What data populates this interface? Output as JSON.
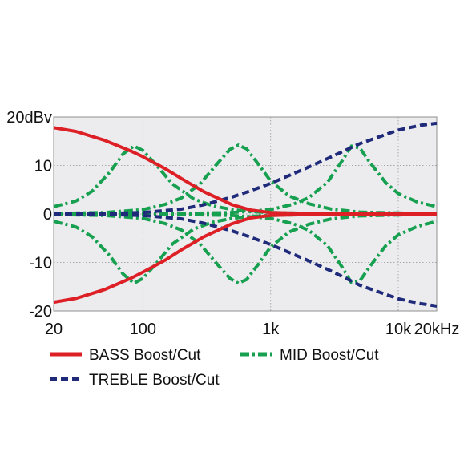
{
  "chart_data": {
    "type": "line",
    "xscale": "log",
    "xlim": [
      20,
      20000
    ],
    "ylim": [
      -20,
      20
    ],
    "grid": true,
    "legend_position": "bottom",
    "x_ticks": [
      {
        "value": 20,
        "label": "20"
      },
      {
        "value": 100,
        "label": "100"
      },
      {
        "value": 1000,
        "label": "1k"
      },
      {
        "value": 10000,
        "label": "10k"
      },
      {
        "value": 20000,
        "label": "20kHz"
      }
    ],
    "y_ticks": [
      {
        "value": 20,
        "label": "20dBv"
      },
      {
        "value": 10,
        "label": "10"
      },
      {
        "value": 0,
        "label": "0"
      },
      {
        "value": -10,
        "label": "-10"
      },
      {
        "value": -20,
        "label": "-20"
      }
    ],
    "legend": [
      {
        "key": "bass",
        "label": "BASS Boost/Cut"
      },
      {
        "key": "mid",
        "label": "MID Boost/Cut"
      },
      {
        "key": "treble",
        "label": "TREBLE Boost/Cut"
      }
    ],
    "series": [
      {
        "key": "bass",
        "name": "BASS Boost/Cut",
        "color": "#dd1f26",
        "style": "solid",
        "x": [
          20,
          30,
          50,
          80,
          100,
          150,
          200,
          300,
          500,
          700,
          1000,
          2000,
          5000,
          20000
        ],
        "y": [
          17.8,
          17,
          15.2,
          13,
          11.8,
          9.3,
          7.3,
          4.6,
          1.9,
          0.8,
          0.3,
          0.1,
          0,
          0
        ]
      },
      {
        "key": "bass",
        "name": "BASS Boost/Cut",
        "color": "#dd1f26",
        "style": "solid",
        "x": [
          20,
          30,
          50,
          80,
          100,
          150,
          200,
          300,
          500,
          700,
          1000,
          2000,
          5000,
          20000
        ],
        "y": [
          -18.2,
          -17.4,
          -15.6,
          -13.3,
          -12,
          -9.5,
          -7.4,
          -4.7,
          -2,
          -0.8,
          -0.3,
          -0.1,
          0,
          0
        ]
      },
      {
        "key": "treble",
        "name": "TREBLE Boost/Cut",
        "color": "#1f2a7a",
        "style": "dashed",
        "x": [
          20,
          50,
          100,
          200,
          300,
          500,
          700,
          1000,
          2000,
          3000,
          5000,
          10000,
          15000,
          20000
        ],
        "y": [
          0,
          0.1,
          0.3,
          1,
          1.9,
          3.5,
          4.8,
          6.3,
          9.7,
          11.8,
          14.5,
          17.3,
          18.3,
          18.7
        ]
      },
      {
        "key": "treble",
        "name": "TREBLE Boost/Cut",
        "color": "#1f2a7a",
        "style": "dashed",
        "x": [
          20,
          50,
          100,
          200,
          300,
          500,
          700,
          1000,
          2000,
          3000,
          5000,
          10000,
          15000,
          20000
        ],
        "y": [
          0,
          -0.1,
          -0.3,
          -1,
          -1.9,
          -3.5,
          -4.8,
          -6.3,
          -9.7,
          -11.8,
          -14.7,
          -17.5,
          -18.5,
          -19
        ]
      },
      {
        "key": "mid",
        "name": "MID Boost/Cut",
        "color": "#17a050",
        "style": "dashdot",
        "x": [
          20,
          30,
          40,
          55,
          70,
          85,
          100,
          130,
          170,
          250,
          350,
          500,
          700,
          1000,
          2000,
          5000,
          20000
        ],
        "y": [
          1.5,
          2.7,
          4.7,
          8.6,
          12.4,
          14,
          13.1,
          9.8,
          6.2,
          3.1,
          1.7,
          0.9,
          0.5,
          0.3,
          0.1,
          0,
          0
        ]
      },
      {
        "key": "mid",
        "name": "MID Boost/Cut",
        "color": "#17a050",
        "style": "dashdot",
        "x": [
          20,
          30,
          40,
          55,
          70,
          85,
          100,
          130,
          170,
          250,
          350,
          500,
          700,
          1000,
          2000,
          5000,
          20000
        ],
        "y": [
          -1.5,
          -2.7,
          -4.7,
          -8.6,
          -12.4,
          -14.3,
          -13.3,
          -9.9,
          -6.2,
          -3.1,
          -1.7,
          -0.9,
          -0.5,
          -0.3,
          -0.1,
          0,
          0
        ]
      },
      {
        "key": "mid",
        "name": "MID Boost/Cut",
        "color": "#17a050",
        "style": "dashdot",
        "x": [
          20,
          50,
          100,
          150,
          200,
          280,
          380,
          480,
          560,
          650,
          800,
          1000,
          1400,
          2000,
          3000,
          5000,
          20000
        ],
        "y": [
          0.1,
          0.3,
          0.9,
          2,
          3.3,
          6.2,
          10.3,
          13.3,
          14.2,
          13.4,
          10.3,
          6.8,
          3.7,
          2.1,
          1,
          0.4,
          0
        ]
      },
      {
        "key": "mid",
        "name": "MID Boost/Cut",
        "color": "#17a050",
        "style": "dashdot",
        "x": [
          20,
          50,
          100,
          150,
          200,
          280,
          380,
          480,
          560,
          650,
          800,
          1000,
          1400,
          2000,
          3000,
          5000,
          20000
        ],
        "y": [
          -0.1,
          -0.3,
          -0.9,
          -2,
          -3.3,
          -6.2,
          -10.3,
          -13.3,
          -14.3,
          -13.5,
          -10.4,
          -6.8,
          -3.7,
          -2.1,
          -1,
          -0.4,
          0
        ]
      },
      {
        "key": "mid",
        "name": "MID Boost/Cut",
        "color": "#17a050",
        "style": "dashdot",
        "x": [
          20,
          200,
          500,
          1000,
          1500,
          2000,
          2800,
          3600,
          4300,
          5000,
          6000,
          8000,
          10000,
          14000,
          20000
        ],
        "y": [
          0,
          0.1,
          0.3,
          0.9,
          2,
          3.4,
          6.6,
          10.8,
          14,
          13.6,
          10.6,
          6.4,
          4.2,
          2.5,
          1.5
        ]
      },
      {
        "key": "mid",
        "name": "MID Boost/Cut",
        "color": "#17a050",
        "style": "dashdot",
        "x": [
          20,
          200,
          500,
          1000,
          1500,
          2000,
          2800,
          3600,
          4300,
          5000,
          6000,
          8000,
          10000,
          14000,
          20000
        ],
        "y": [
          0,
          -0.1,
          -0.3,
          -0.9,
          -2,
          -3.4,
          -6.6,
          -10.8,
          -14.2,
          -13.8,
          -10.8,
          -6.5,
          -4.3,
          -2.6,
          -1.5
        ]
      }
    ]
  }
}
